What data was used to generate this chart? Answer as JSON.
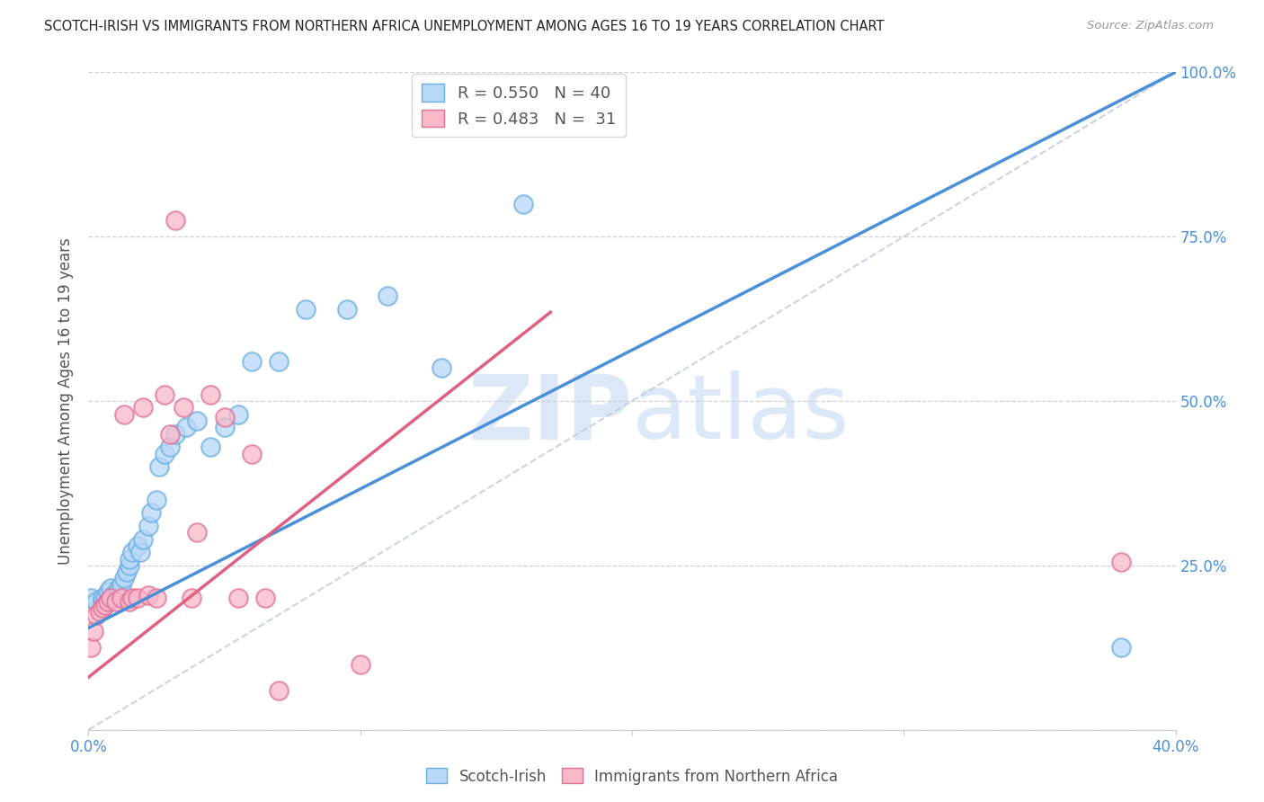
{
  "title": "SCOTCH-IRISH VS IMMIGRANTS FROM NORTHERN AFRICA UNEMPLOYMENT AMONG AGES 16 TO 19 YEARS CORRELATION CHART",
  "source": "Source: ZipAtlas.com",
  "ylabel": "Unemployment Among Ages 16 to 19 years",
  "x_lim": [
    0.0,
    0.4
  ],
  "y_lim": [
    0.0,
    1.0
  ],
  "legend1_r": "0.550",
  "legend1_n": "40",
  "legend2_r": "0.483",
  "legend2_n": "31",
  "scatter1_color_face": "#b8d8f8",
  "scatter1_color_edge": "#6aaee0",
  "scatter2_color_face": "#f8b8c8",
  "scatter2_color_edge": "#e0709a",
  "line1_color": "#4a90d9",
  "line2_color": "#e06080",
  "diagonal_color": "#c0c8d8",
  "watermark_color": "#dce8f8",
  "tick_color": "#4a90d9",
  "label_color": "#555555",
  "title_color": "#222222",
  "source_color": "#999999",
  "grid_color": "#d0d0d8",
  "scotch_irish_x": [
    0.001,
    0.003,
    0.005,
    0.005,
    0.006,
    0.007,
    0.007,
    0.008,
    0.009,
    0.01,
    0.011,
    0.012,
    0.013,
    0.014,
    0.015,
    0.015,
    0.016,
    0.018,
    0.019,
    0.02,
    0.022,
    0.023,
    0.025,
    0.026,
    0.028,
    0.03,
    0.032,
    0.036,
    0.04,
    0.045,
    0.05,
    0.055,
    0.06,
    0.07,
    0.08,
    0.095,
    0.11,
    0.13,
    0.16,
    0.38
  ],
  "scotch_irish_y": [
    0.2,
    0.195,
    0.195,
    0.2,
    0.2,
    0.195,
    0.21,
    0.215,
    0.205,
    0.2,
    0.215,
    0.22,
    0.23,
    0.24,
    0.25,
    0.26,
    0.27,
    0.28,
    0.27,
    0.29,
    0.31,
    0.33,
    0.35,
    0.4,
    0.42,
    0.43,
    0.45,
    0.46,
    0.47,
    0.43,
    0.46,
    0.48,
    0.56,
    0.56,
    0.64,
    0.64,
    0.66,
    0.55,
    0.8,
    0.125
  ],
  "north_africa_x": [
    0.001,
    0.002,
    0.003,
    0.004,
    0.005,
    0.006,
    0.007,
    0.008,
    0.01,
    0.012,
    0.013,
    0.015,
    0.016,
    0.018,
    0.02,
    0.022,
    0.025,
    0.028,
    0.03,
    0.032,
    0.035,
    0.038,
    0.04,
    0.045,
    0.05,
    0.055,
    0.06,
    0.065,
    0.07,
    0.1,
    0.38
  ],
  "north_africa_y": [
    0.125,
    0.15,
    0.175,
    0.18,
    0.185,
    0.19,
    0.195,
    0.2,
    0.195,
    0.2,
    0.48,
    0.195,
    0.2,
    0.2,
    0.49,
    0.205,
    0.2,
    0.51,
    0.45,
    0.775,
    0.49,
    0.2,
    0.3,
    0.51,
    0.475,
    0.2,
    0.42,
    0.2,
    0.06,
    0.1,
    0.255
  ],
  "line1_x0": 0.0,
  "line1_y0": 0.155,
  "line1_x1": 0.4,
  "line1_y1": 1.0,
  "line2_x0": 0.0,
  "line2_y0": 0.08,
  "line2_x1": 0.17,
  "line2_y1": 0.635,
  "background_color": "#ffffff"
}
